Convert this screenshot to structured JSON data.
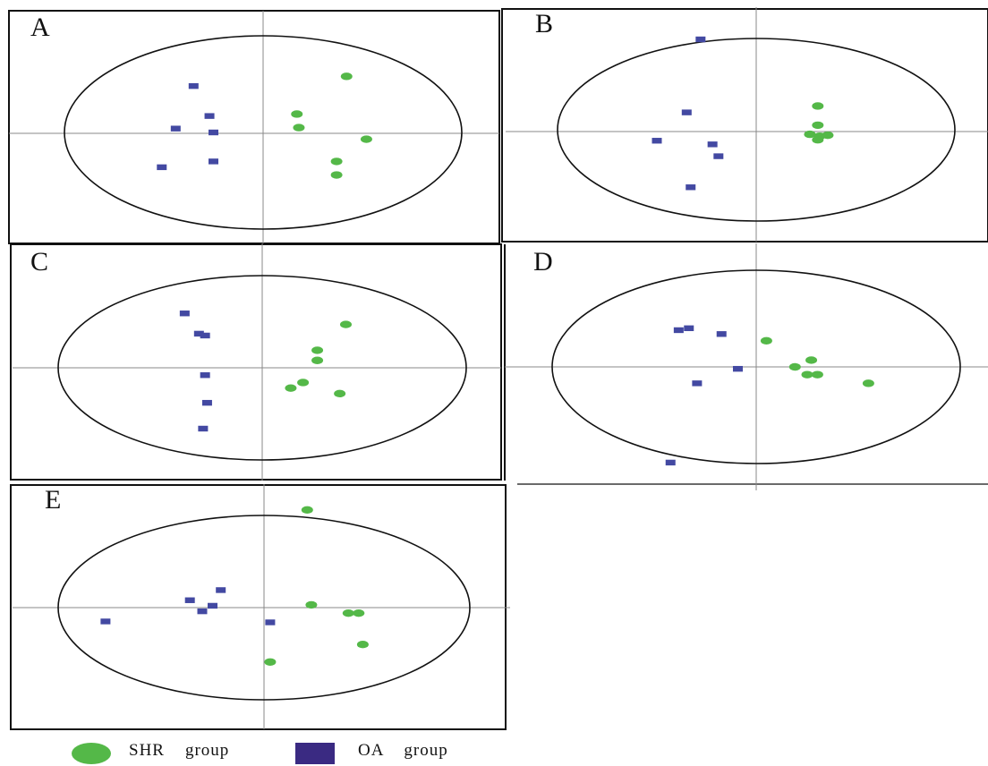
{
  "colors": {
    "shr": "#54b848",
    "oa": "#4349a2",
    "frame": "#111111",
    "axis": "#888888",
    "ellipse": "#111111",
    "legend_square": "#3a2a82"
  },
  "legend": {
    "shr_label": "SHR    group",
    "oa_label": "OA    group"
  },
  "chart_data": [
    {
      "type": "scatter",
      "panel_label": "A",
      "xlim": [
        -1,
        1
      ],
      "ylim": [
        -1,
        1
      ],
      "series": [
        {
          "name": "SHR group",
          "marker": "circle",
          "points": [
            [
              0.42,
              0.58
            ],
            [
              0.17,
              0.19
            ],
            [
              0.18,
              0.05
            ],
            [
              0.52,
              -0.07
            ],
            [
              0.37,
              -0.3
            ],
            [
              0.37,
              -0.44
            ]
          ]
        },
        {
          "name": "OA group",
          "marker": "square",
          "points": [
            [
              -0.35,
              0.48
            ],
            [
              -0.27,
              0.17
            ],
            [
              -0.44,
              0.04
            ],
            [
              -0.25,
              0.0
            ],
            [
              -0.25,
              -0.3
            ],
            [
              -0.51,
              -0.36
            ]
          ]
        }
      ]
    },
    {
      "type": "scatter",
      "panel_label": "B",
      "xlim": [
        -1,
        1
      ],
      "ylim": [
        -1,
        1
      ],
      "series": [
        {
          "name": "SHR group",
          "marker": "circle",
          "points": [
            [
              0.31,
              0.26
            ],
            [
              0.31,
              0.05
            ],
            [
              0.27,
              -0.05
            ],
            [
              0.32,
              -0.07
            ],
            [
              0.36,
              -0.06
            ],
            [
              0.31,
              -0.11
            ]
          ]
        },
        {
          "name": "OA group",
          "marker": "square",
          "points": [
            [
              -0.28,
              0.99
            ],
            [
              -0.35,
              0.19
            ],
            [
              -0.5,
              -0.12
            ],
            [
              -0.22,
              -0.16
            ],
            [
              -0.19,
              -0.29
            ],
            [
              -0.33,
              -0.63
            ]
          ]
        }
      ]
    },
    {
      "type": "scatter",
      "panel_label": "C",
      "xlim": [
        -1,
        1
      ],
      "ylim": [
        -1,
        1
      ],
      "series": [
        {
          "name": "SHR group",
          "marker": "circle",
          "points": [
            [
              0.41,
              0.47
            ],
            [
              0.27,
              0.19
            ],
            [
              0.27,
              0.08
            ],
            [
              0.2,
              -0.16
            ],
            [
              0.14,
              -0.22
            ],
            [
              0.38,
              -0.28
            ]
          ]
        },
        {
          "name": "OA group",
          "marker": "square",
          "points": [
            [
              -0.38,
              0.59
            ],
            [
              -0.31,
              0.37
            ],
            [
              -0.28,
              0.35
            ],
            [
              -0.28,
              -0.08
            ],
            [
              -0.27,
              -0.38
            ],
            [
              -0.29,
              -0.66
            ]
          ]
        }
      ]
    },
    {
      "type": "scatter",
      "panel_label": "D",
      "xlim": [
        -1,
        1
      ],
      "ylim": [
        -1,
        1
      ],
      "series": [
        {
          "name": "SHR group",
          "marker": "circle",
          "points": [
            [
              0.05,
              0.27
            ],
            [
              0.27,
              0.07
            ],
            [
              0.19,
              0.0
            ],
            [
              0.25,
              -0.08
            ],
            [
              0.3,
              -0.08
            ],
            [
              0.55,
              -0.17
            ]
          ]
        },
        {
          "name": "OA group",
          "marker": "square",
          "points": [
            [
              -0.38,
              0.38
            ],
            [
              -0.33,
              0.4
            ],
            [
              -0.17,
              0.34
            ],
            [
              -0.09,
              -0.02
            ],
            [
              -0.29,
              -0.17
            ],
            [
              -0.42,
              -0.99
            ]
          ]
        }
      ]
    },
    {
      "type": "scatter",
      "panel_label": "E",
      "xlim": [
        -1,
        1
      ],
      "ylim": [
        -1,
        1
      ],
      "series": [
        {
          "name": "SHR group",
          "marker": "circle",
          "points": [
            [
              0.21,
              1.06
            ],
            [
              0.23,
              0.03
            ],
            [
              0.41,
              -0.06
            ],
            [
              0.46,
              -0.06
            ],
            [
              0.48,
              -0.4
            ],
            [
              0.03,
              -0.59
            ]
          ]
        },
        {
          "name": "OA group",
          "marker": "square",
          "points": [
            [
              -0.21,
              0.19
            ],
            [
              -0.36,
              0.08
            ],
            [
              -0.25,
              0.02
            ],
            [
              -0.3,
              -0.04
            ],
            [
              -0.77,
              -0.15
            ],
            [
              0.03,
              -0.16
            ]
          ]
        }
      ]
    }
  ]
}
